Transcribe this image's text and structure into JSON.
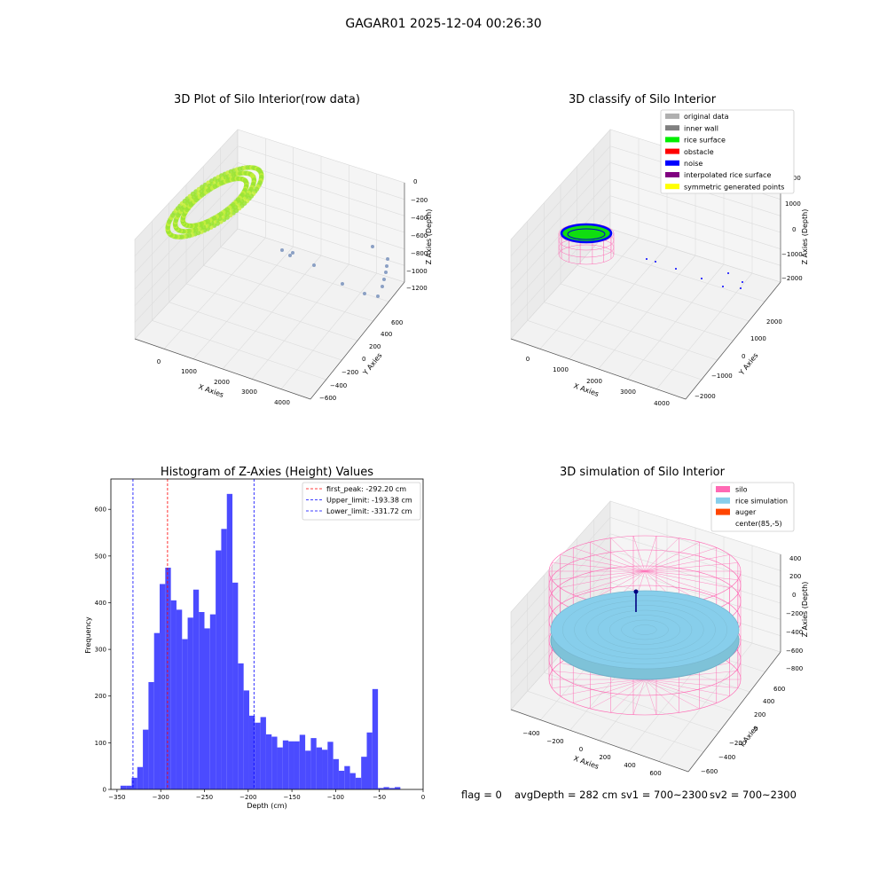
{
  "figure": {
    "suptitle": "GAGAR01 2025-12-04 00:26:30"
  },
  "status_line": {
    "flag": "flag = 0",
    "avg_depth": "avgDepth = 282 cm",
    "sv1": "sv1 = 700~2300",
    "sv2": "sv2 = 700~2300"
  },
  "chart_data": [
    {
      "type": "scatter",
      "panel": "3d-raw",
      "title": "3D Plot of Silo Interior(row data)",
      "xlabel": "X Axies",
      "ylabel": "Y Axies",
      "zlabel": "Z Axies (Depth)",
      "x_ticks": [
        "0",
        "1000",
        "2000",
        "3000",
        "4000"
      ],
      "y_ticks": [
        "−600",
        "−400",
        "−200",
        "0",
        "200",
        "400",
        "600"
      ],
      "z_ticks": [
        "0",
        "−200",
        "−400",
        "−600",
        "−800",
        "−1000",
        "−1200"
      ],
      "colors": {
        "cloud": "#9be432",
        "cloud_light": "#c8f03c",
        "outliers": "#8ba0c4"
      }
    },
    {
      "type": "scatter",
      "panel": "3d-classify",
      "title": "3D classify of Silo Interior",
      "xlabel": "X Axies",
      "ylabel": "Y Axies",
      "zlabel": "Z Axies (Depth)",
      "x_ticks": [
        "0",
        "1000",
        "2000",
        "3000",
        "4000"
      ],
      "y_ticks": [
        "−2000",
        "−1000",
        "0",
        "1000",
        "2000"
      ],
      "z_ticks": [
        "2000",
        "1000",
        "0",
        "−1000",
        "−2000"
      ],
      "legend_loc": "upper right",
      "legend": [
        {
          "label": "original data",
          "color": "#b0b0b0"
        },
        {
          "label": "inner wall",
          "color": "#808080"
        },
        {
          "label": "rice surface",
          "color": "#00ee00"
        },
        {
          "label": "obstacle",
          "color": "#ff0000"
        },
        {
          "label": "noise",
          "color": "#0000ff"
        },
        {
          "label": "interpolated rice surface",
          "color": "#800080"
        },
        {
          "label": "symmetric generated points",
          "color": "#ffff00"
        }
      ]
    },
    {
      "type": "bar",
      "panel": "histogram",
      "title": "Histogram of Z-Axies (Height) Values",
      "xlabel": "Depth (cm)",
      "ylabel": "Frequency",
      "xlim": [
        -357,
        0
      ],
      "ylim": [
        0,
        665
      ],
      "x_ticks": [
        -350,
        -300,
        -250,
        -200,
        -150,
        -100,
        -50,
        0
      ],
      "x_tick_labels": [
        "−350",
        "−300",
        "−250",
        "−200",
        "−150",
        "−100",
        "−50",
        "0"
      ],
      "y_ticks": [
        0,
        100,
        200,
        300,
        400,
        500,
        600
      ],
      "bar_color": "#4b4bff",
      "bin_edges_start": -346,
      "bin_width": 6.4,
      "values": [
        8,
        8,
        25,
        48,
        128,
        230,
        335,
        440,
        475,
        405,
        385,
        322,
        368,
        428,
        380,
        345,
        375,
        512,
        558,
        633,
        443,
        270,
        212,
        158,
        143,
        155,
        118,
        113,
        90,
        105,
        103,
        103,
        117,
        83,
        110,
        90,
        85,
        102,
        65,
        40,
        50,
        35,
        25,
        70,
        122,
        215,
        3,
        5,
        3,
        5
      ],
      "vlines": [
        {
          "x": -292.2,
          "color": "#ff0000",
          "label": "first_peak: -292.20 cm"
        },
        {
          "x": -193.38,
          "color": "#0000ff",
          "label": "Upper_limit: -193.38 cm"
        },
        {
          "x": -331.72,
          "color": "#0000ff",
          "label": "Lower_limit: -331.72 cm"
        }
      ],
      "legend_loc": "upper right"
    },
    {
      "type": "scatter",
      "panel": "3d-simulation",
      "title": "3D simulation of Silo Interior",
      "xlabel": "X Axies",
      "ylabel": "Y Axies",
      "zlabel": "Z Axies (Depth)",
      "x_ticks": [
        "−400",
        "−200",
        "0",
        "200",
        "400",
        "600"
      ],
      "y_ticks": [
        "−600",
        "−400",
        "−200",
        "0",
        "200",
        "400",
        "600"
      ],
      "z_ticks": [
        "400",
        "200",
        "0",
        "−200",
        "−400",
        "−600",
        "−800"
      ],
      "legend_loc": "upper right",
      "legend": [
        {
          "label": "silo",
          "color": "#ff69b4"
        },
        {
          "label": "rice simulation",
          "color": "#87ceeb"
        },
        {
          "label": "auger",
          "color": "#ff4500"
        },
        {
          "label": "center(85,-5)",
          "color": ""
        }
      ]
    }
  ]
}
